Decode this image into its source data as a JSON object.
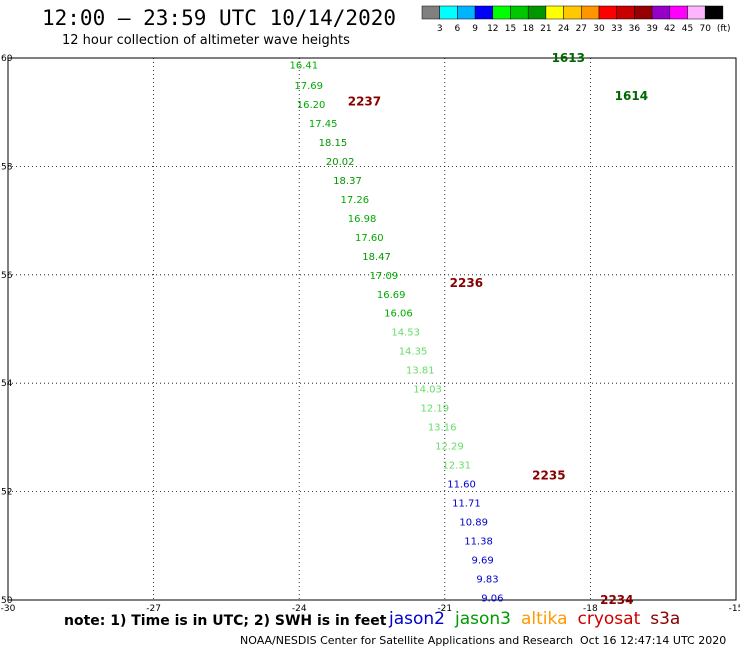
{
  "header": {
    "title": "12:00 – 23:59 UTC 10/14/2020",
    "subtitle": "12 hour collection of altimeter wave heights"
  },
  "footer": {
    "note": "note: 1) Time is in UTC; 2) SWH is in feet",
    "center": "NOAA/NESDIS Center for Satellite Applications and Research",
    "timestamp": "Oct 16 12:47:14 UTC 2020"
  },
  "legend_satellites": [
    {
      "label": "jason2",
      "color": "#0000cc"
    },
    {
      "label": "jason3",
      "color": "#009900"
    },
    {
      "label": "altika",
      "color": "#ff9900"
    },
    {
      "label": "cryosat",
      "color": "#cc0000"
    },
    {
      "label": "s3a",
      "color": "#880000"
    }
  ],
  "chart_data": {
    "type": "scatter",
    "xlim": [
      -30,
      -15
    ],
    "ylim": [
      50,
      60
    ],
    "x_ticks": [
      -30,
      -27,
      -24,
      -21,
      -18,
      -15
    ],
    "y_ticks": [
      50,
      52,
      54,
      56,
      58,
      60
    ],
    "grid": true,
    "colorbar": {
      "unit": "(ft)",
      "labels": [
        "3",
        "6",
        "9",
        "12",
        "15",
        "18",
        "21",
        "24",
        "27",
        "30",
        "33",
        "36",
        "39",
        "42",
        "45",
        "70"
      ],
      "colors": [
        "#808080",
        "#00ffff",
        "#00b4ff",
        "#0000ff",
        "#00ff00",
        "#00c800",
        "#009600",
        "#ffff00",
        "#ffc800",
        "#ff9600",
        "#ff0000",
        "#c80000",
        "#960000",
        "#9600c8",
        "#ff00ff",
        "#ffb4ff",
        "#000000"
      ]
    },
    "time_labels": [
      {
        "label": "2234",
        "lon": -17.8,
        "lat": 50.0,
        "color": "#880000"
      },
      {
        "label": "2235",
        "lon": -19.2,
        "lat": 52.3,
        "color": "#880000"
      },
      {
        "label": "2236",
        "lon": -20.9,
        "lat": 55.85,
        "color": "#880000"
      },
      {
        "label": "2237",
        "lon": -23.0,
        "lat": 59.2,
        "color": "#880000"
      },
      {
        "label": "1613",
        "lon": -18.8,
        "lat": 60.0,
        "color": "#006600"
      },
      {
        "label": "1614",
        "lon": -17.5,
        "lat": 59.3,
        "color": "#006600"
      }
    ],
    "series": [
      {
        "track": "descending",
        "points": [
          {
            "lon": -24.2,
            "lat": 59.88,
            "swh": "16.41",
            "color": "#00aa00"
          },
          {
            "lon": -24.1,
            "lat": 59.5,
            "swh": "17.69",
            "color": "#00aa00"
          },
          {
            "lon": -24.05,
            "lat": 59.15,
            "swh": "16.20",
            "color": "#00aa00"
          },
          {
            "lon": -23.8,
            "lat": 58.8,
            "swh": "17.45",
            "color": "#00aa00"
          },
          {
            "lon": -23.6,
            "lat": 58.45,
            "swh": "18.15",
            "color": "#009600"
          },
          {
            "lon": -23.45,
            "lat": 58.1,
            "swh": "20.02",
            "color": "#009600"
          },
          {
            "lon": -23.3,
            "lat": 57.75,
            "swh": "18.37",
            "color": "#009600"
          },
          {
            "lon": -23.15,
            "lat": 57.4,
            "swh": "17.26",
            "color": "#00aa00"
          },
          {
            "lon": -23.0,
            "lat": 57.05,
            "swh": "16.98",
            "color": "#00aa00"
          },
          {
            "lon": -22.85,
            "lat": 56.7,
            "swh": "17.60",
            "color": "#00aa00"
          },
          {
            "lon": -22.7,
            "lat": 56.35,
            "swh": "18.47",
            "color": "#009600"
          },
          {
            "lon": -22.55,
            "lat": 56.0,
            "swh": "17.09",
            "color": "#00aa00"
          },
          {
            "lon": -22.4,
            "lat": 55.65,
            "swh": "16.69",
            "color": "#00aa00"
          },
          {
            "lon": -22.25,
            "lat": 55.3,
            "swh": "16.06",
            "color": "#00aa00"
          },
          {
            "lon": -22.1,
            "lat": 54.95,
            "swh": "14.53",
            "color": "#66dd66"
          },
          {
            "lon": -21.95,
            "lat": 54.6,
            "swh": "14.35",
            "color": "#66dd66"
          },
          {
            "lon": -21.8,
            "lat": 54.25,
            "swh": "13.81",
            "color": "#66dd66"
          },
          {
            "lon": -21.65,
            "lat": 53.9,
            "swh": "14.03",
            "color": "#66dd66"
          },
          {
            "lon": -21.5,
            "lat": 53.55,
            "swh": "12.19",
            "color": "#66dd66"
          },
          {
            "lon": -21.35,
            "lat": 53.2,
            "swh": "13.16",
            "color": "#66dd66"
          },
          {
            "lon": -21.2,
            "lat": 52.85,
            "swh": "12.29",
            "color": "#66dd66"
          },
          {
            "lon": -21.05,
            "lat": 52.5,
            "swh": "12.31",
            "color": "#66dd66"
          },
          {
            "lon": -20.95,
            "lat": 52.15,
            "swh": "11.60",
            "color": "#0000cc"
          },
          {
            "lon": -20.85,
            "lat": 51.8,
            "swh": "11.71",
            "color": "#0000cc"
          },
          {
            "lon": -20.7,
            "lat": 51.45,
            "swh": "10.89",
            "color": "#0000cc"
          },
          {
            "lon": -20.6,
            "lat": 51.1,
            "swh": "11.38",
            "color": "#0000cc"
          },
          {
            "lon": -20.45,
            "lat": 50.75,
            "swh": "9.69",
            "color": "#0000cc"
          },
          {
            "lon": -20.35,
            "lat": 50.4,
            "swh": "9.83",
            "color": "#0000cc"
          },
          {
            "lon": -20.25,
            "lat": 50.05,
            "swh": "9.06",
            "color": "#0000cc"
          }
        ]
      }
    ]
  }
}
